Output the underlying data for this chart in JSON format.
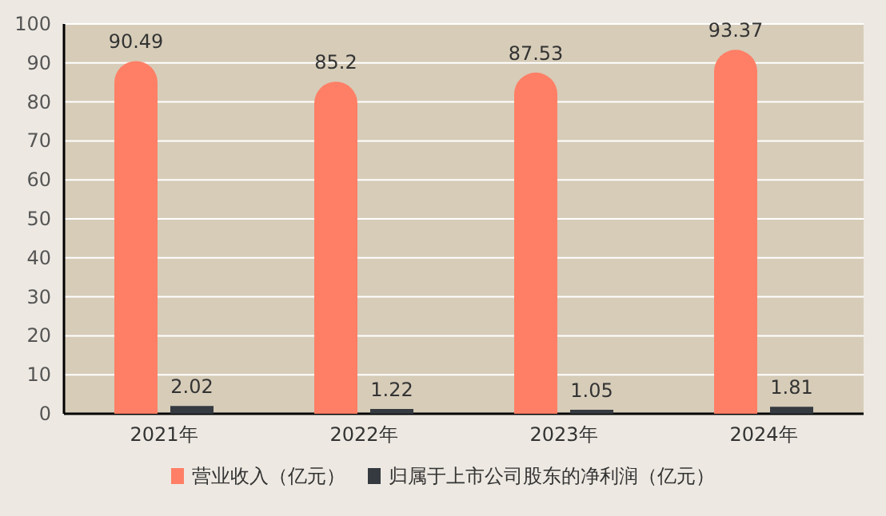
{
  "chart_data": {
    "type": "bar",
    "categories": [
      "2021年",
      "2022年",
      "2023年",
      "2024年"
    ],
    "series": [
      {
        "name": "营业收入（亿元）",
        "color": "#ff7f66",
        "values": [
          90.49,
          85.2,
          87.53,
          93.37
        ]
      },
      {
        "name": "归属于上市公司股东的净利润（亿元）",
        "color": "#353a40",
        "values": [
          2.02,
          1.22,
          1.05,
          1.81
        ]
      }
    ],
    "ylim": [
      0,
      100
    ],
    "yticks": [
      0,
      10,
      20,
      30,
      40,
      50,
      60,
      70,
      80,
      90,
      100
    ],
    "grid": "y",
    "legend": "bottom",
    "data_labels": true
  }
}
